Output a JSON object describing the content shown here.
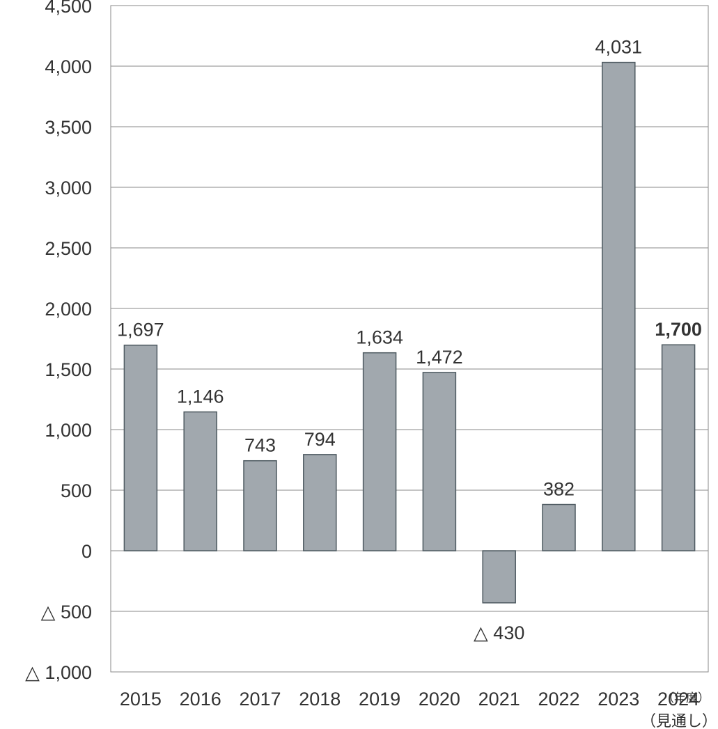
{
  "chart_data": {
    "type": "bar",
    "categories": [
      "2015",
      "2016",
      "2017",
      "2018",
      "2019",
      "2020",
      "2021",
      "2022",
      "2023",
      "2024"
    ],
    "values": [
      1697,
      1146,
      743,
      794,
      1634,
      1472,
      -430,
      382,
      4031,
      1700
    ],
    "value_labels": [
      "1,697",
      "1,146",
      "743",
      "794",
      "1,634",
      "1,472",
      "△ 430",
      "382",
      "4,031",
      "1,700"
    ],
    "bold_label_index": 9,
    "yticks": [
      4500,
      4000,
      3500,
      3000,
      2500,
      2000,
      1500,
      1000,
      500,
      0,
      -500,
      -1000
    ],
    "ytick_labels": [
      "4,500",
      "4,000",
      "3,500",
      "3,000",
      "2,500",
      "2,000",
      "1,500",
      "1,000",
      "500",
      "0",
      "△ 500",
      "△ 1,000"
    ],
    "ylim": [
      -1000,
      4500
    ],
    "x_unit_label": "（年度）",
    "last_category_note": "（見通し）",
    "bar_color": "#a1a8ae",
    "bar_stroke": "#4e5a61",
    "grid": true,
    "grid_color": "#8a8a8a",
    "legend": false
  }
}
